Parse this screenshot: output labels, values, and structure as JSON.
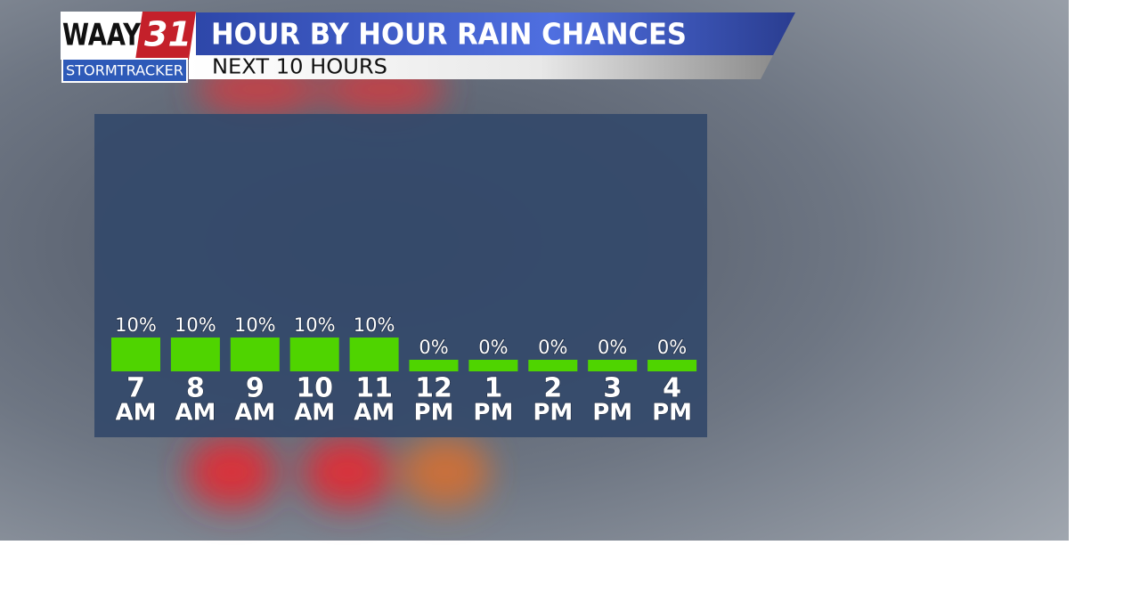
{
  "logo": {
    "name": "WAAY",
    "number": "31",
    "brand": "StormTracker"
  },
  "chart_data": {
    "type": "bar",
    "title": "HOUR BY HOUR RAIN CHANCES",
    "subtitle": "NEXT 10 HOURS",
    "categories": [
      [
        "7",
        "AM"
      ],
      [
        "8",
        "AM"
      ],
      [
        "9",
        "AM"
      ],
      [
        "10",
        "AM"
      ],
      [
        "11",
        "AM"
      ],
      [
        "12",
        "PM"
      ],
      [
        "1",
        "PM"
      ],
      [
        "2",
        "PM"
      ],
      [
        "3",
        "PM"
      ],
      [
        "4",
        "PM"
      ]
    ],
    "values": [
      10,
      10,
      10,
      10,
      10,
      0,
      0,
      0,
      0,
      0
    ],
    "value_labels": [
      "10%",
      "10%",
      "10%",
      "10%",
      "10%",
      "0%",
      "0%",
      "0%",
      "0%",
      "0%"
    ],
    "color": "#4fd400"
  }
}
